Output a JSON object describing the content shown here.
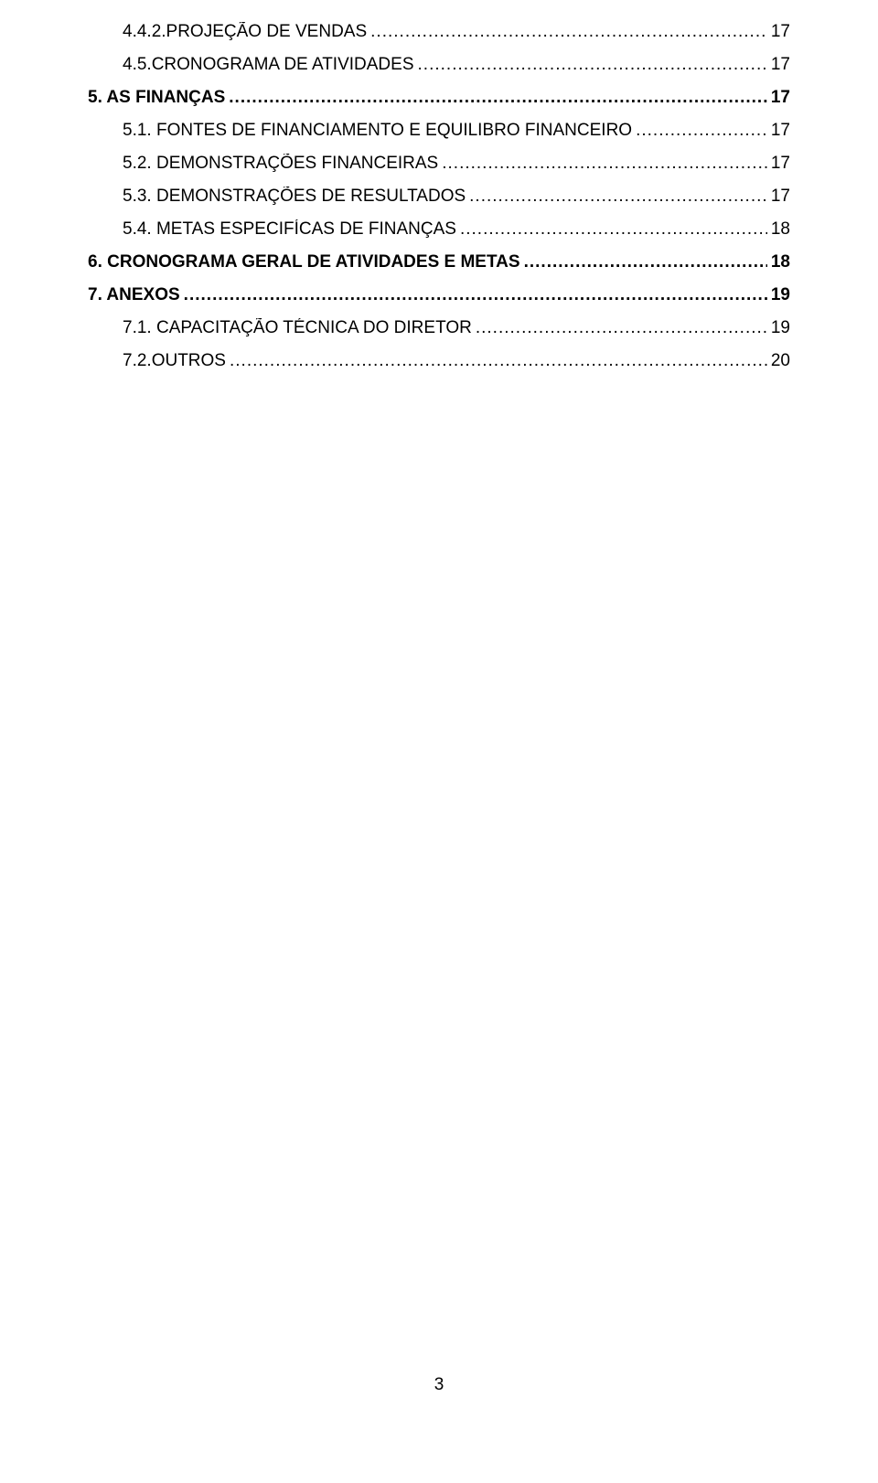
{
  "page": {
    "background_color": "#ffffff",
    "text_color": "#000000",
    "font_family": "Arial",
    "fontsize_pt": 14,
    "page_number": "3"
  },
  "toc": {
    "entries": [
      {
        "label": "4.4.2.PROJEÇÃO DE VENDAS",
        "page": "17",
        "indent": 1,
        "bold": false
      },
      {
        "label": "4.5.CRONOGRAMA DE ATIVIDADES",
        "page": "17",
        "indent": 1,
        "bold": false
      },
      {
        "label": "5. AS FINANÇAS",
        "page": "17",
        "indent": 0,
        "bold": true
      },
      {
        "label": "5.1. FONTES DE FINANCIAMENTO E EQUILIBRO FINANCEIRO",
        "page": "17",
        "indent": 1,
        "bold": false
      },
      {
        "label": "5.2. DEMONSTRAÇÕES FINANCEIRAS",
        "page": "17",
        "indent": 1,
        "bold": false
      },
      {
        "label": "5.3. DEMONSTRAÇÕES DE RESULTADOS",
        "page": "17",
        "indent": 1,
        "bold": false
      },
      {
        "label": "5.4. METAS ESPECIFÍCAS DE FINANÇAS",
        "page": "18",
        "indent": 1,
        "bold": false
      },
      {
        "label": "6. CRONOGRAMA GERAL DE ATIVIDADES E METAS",
        "page": "18",
        "indent": 0,
        "bold": true
      },
      {
        "label": "7. ANEXOS",
        "page": "19",
        "indent": 0,
        "bold": true
      },
      {
        "label": "7.1. CAPACITAÇÃO TÉCNICA DO DIRETOR",
        "page": "19",
        "indent": 1,
        "bold": false
      },
      {
        "label": "7.2.OUTROS",
        "page": "20",
        "indent": 1,
        "bold": false
      }
    ]
  }
}
